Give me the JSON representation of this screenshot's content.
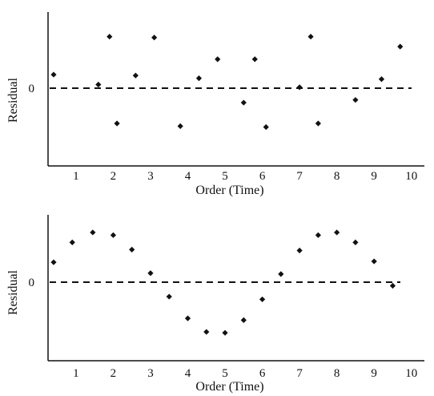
{
  "chart_data": [
    {
      "type": "scatter",
      "xlabel": "Order (Time)",
      "ylabel": "Residual",
      "zero_label": "0",
      "x_ticks": [
        "1",
        "2",
        "3",
        "4",
        "5",
        "6",
        "7",
        "8",
        "9",
        "10"
      ],
      "xlim": [
        0.25,
        10.35
      ],
      "ylim": [
        -3.9,
        3.9
      ],
      "zero_line": "dashed",
      "x": [
        0.4,
        1.6,
        1.9,
        2.1,
        2.6,
        3.1,
        3.8,
        4.3,
        4.8,
        5.5,
        5.8,
        6.1,
        7.0,
        7.3,
        7.5,
        8.5,
        9.2,
        9.7
      ],
      "y": [
        0.75,
        0.2,
        2.85,
        -1.95,
        0.7,
        2.8,
        -2.1,
        0.55,
        1.6,
        -0.8,
        1.6,
        -2.15,
        0.05,
        2.85,
        -1.95,
        -0.65,
        0.5,
        2.3
      ]
    },
    {
      "type": "scatter",
      "xlabel": "Order (Time)",
      "ylabel": "Residual",
      "zero_label": "0",
      "x_ticks": [
        "1",
        "2",
        "3",
        "4",
        "5",
        "6",
        "7",
        "8",
        "9",
        "10"
      ],
      "xlim": [
        0.25,
        10.35
      ],
      "ylim": [
        -3.9,
        3.9
      ],
      "zero_line": "dashed",
      "x": [
        0.4,
        0.9,
        1.45,
        2.0,
        2.5,
        3.0,
        3.5,
        4.0,
        4.5,
        5.0,
        5.5,
        6.0,
        6.5,
        7.0,
        7.5,
        8.0,
        8.5,
        9.0,
        9.5
      ],
      "y": [
        1.1,
        2.2,
        2.75,
        2.6,
        1.8,
        0.5,
        -0.8,
        -2.0,
        -2.75,
        -2.8,
        -2.1,
        -0.95,
        0.45,
        1.75,
        2.6,
        2.75,
        2.2,
        1.15,
        -0.2
      ]
    }
  ]
}
